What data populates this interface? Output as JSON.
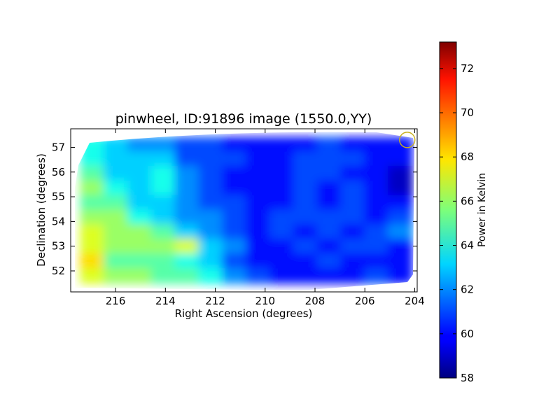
{
  "chart_data": {
    "type": "heatmap",
    "title": "pinwheel, ID:91896 image (1550.0,YY)",
    "xlabel": "Right Ascension (degrees)",
    "ylabel": "Declination (degrees)",
    "xlim": [
      217.8,
      203.9
    ],
    "ylim": [
      51.15,
      57.75
    ],
    "xticks": [
      216,
      214,
      212,
      210,
      208,
      206,
      204
    ],
    "yticks": [
      52,
      53,
      54,
      55,
      56,
      57
    ],
    "colorbar": {
      "label": "Power in Kelvin",
      "colormap": "jet",
      "range": [
        58,
        73.2
      ],
      "ticks": [
        58,
        60,
        62,
        64,
        66,
        68,
        70,
        72
      ]
    },
    "beam_marker": {
      "ra": 204.3,
      "dec": 57.3,
      "color": "#c8b020"
    },
    "intensity_grid": {
      "ra_start": 217.4,
      "ra_end": 204.1,
      "dec_start": 57.4,
      "dec_end": 51.5,
      "unit": "K",
      "values": [
        [
          64,
          63,
          62,
          62,
          61,
          61,
          60,
          60,
          60,
          60,
          61,
          60,
          60,
          60
        ],
        [
          64,
          63,
          63,
          63,
          61,
          61,
          61,
          60,
          60,
          61,
          61,
          61,
          60,
          60
        ],
        [
          65,
          63,
          63,
          64,
          62,
          61,
          60,
          60,
          60,
          61,
          61,
          60,
          60,
          59
        ],
        [
          66,
          64,
          63,
          64,
          62,
          61,
          60,
          60,
          60,
          61,
          60,
          61,
          60,
          59
        ],
        [
          65,
          65,
          63,
          63,
          62,
          61,
          61,
          60,
          60,
          61,
          60,
          61,
          60,
          60
        ],
        [
          66,
          66,
          64,
          63,
          62,
          62,
          61,
          60,
          61,
          61,
          61,
          61,
          60,
          61
        ],
        [
          67,
          66,
          66,
          65,
          63,
          62,
          61,
          60,
          61,
          60,
          61,
          60,
          61,
          62
        ],
        [
          67,
          66,
          66,
          66,
          67,
          63,
          62,
          60,
          60,
          61,
          60,
          61,
          61,
          60
        ],
        [
          68,
          65,
          65,
          65,
          64,
          63,
          61,
          60,
          60,
          60,
          61,
          60,
          60,
          60
        ],
        [
          67,
          66,
          66,
          65,
          65,
          64,
          62,
          61,
          60,
          60,
          60,
          60,
          61,
          60
        ]
      ]
    }
  }
}
